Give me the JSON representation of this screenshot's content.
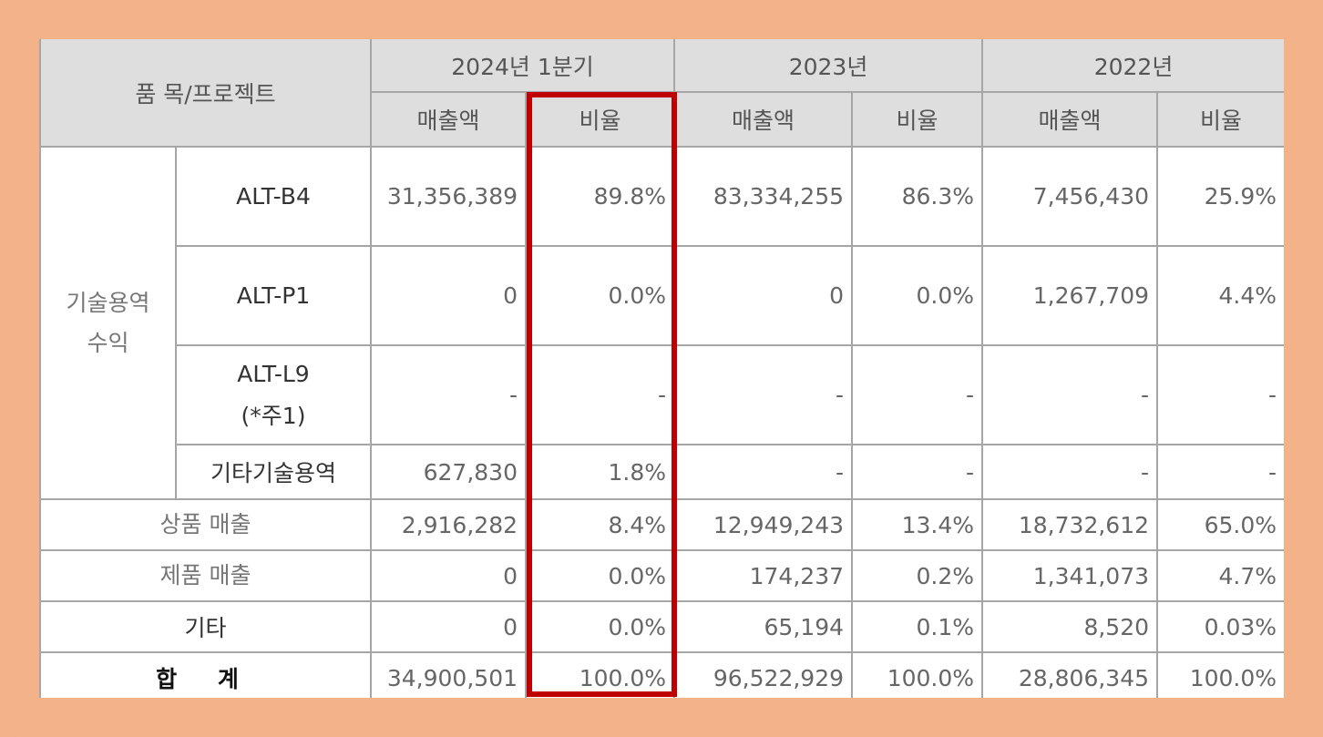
{
  "header": {
    "item_label": "품 목/프로젝트",
    "periods": [
      "2024년 1분기",
      "2023년",
      "2022년"
    ],
    "sales_label": "매출액",
    "ratio_label": "비율"
  },
  "group_label": "기술용역 수익",
  "rows": [
    {
      "name": "ALT-B4",
      "v": [
        "31,356,389",
        "89.8%",
        "83,334,255",
        "86.3%",
        "7,456,430",
        "25.9%"
      ]
    },
    {
      "name": "ALT-P1",
      "v": [
        "0",
        "0.0%",
        "0",
        "0.0%",
        "1,267,709",
        "4.4%"
      ]
    },
    {
      "name_line1": "ALT-L9",
      "name_line2": "(*주1)",
      "v": [
        "-",
        "-",
        "-",
        "-",
        "-",
        "-"
      ]
    },
    {
      "name": "기타기술용역",
      "v": [
        "627,830",
        "1.8%",
        "-",
        "-",
        "-",
        "-"
      ]
    },
    {
      "name": "상품 매출",
      "v": [
        "2,916,282",
        "8.4%",
        "12,949,243",
        "13.4%",
        "18,732,612",
        "65.0%"
      ]
    },
    {
      "name": "제품 매출",
      "v": [
        "0",
        "0.0%",
        "174,237",
        "0.2%",
        "1,341,073",
        "4.7%"
      ]
    },
    {
      "name": "기타",
      "v": [
        "0",
        "0.0%",
        "65,194",
        "0.1%",
        "8,520",
        "0.03%"
      ]
    },
    {
      "name": "합 계",
      "v": [
        "34,900,501",
        "100.0%",
        "96,522,929",
        "100.0%",
        "28,806,345",
        "100.0%"
      ]
    }
  ],
  "colors": {
    "background": "#f3b287",
    "header_bg": "#dedede",
    "highlight": "#c00000"
  }
}
